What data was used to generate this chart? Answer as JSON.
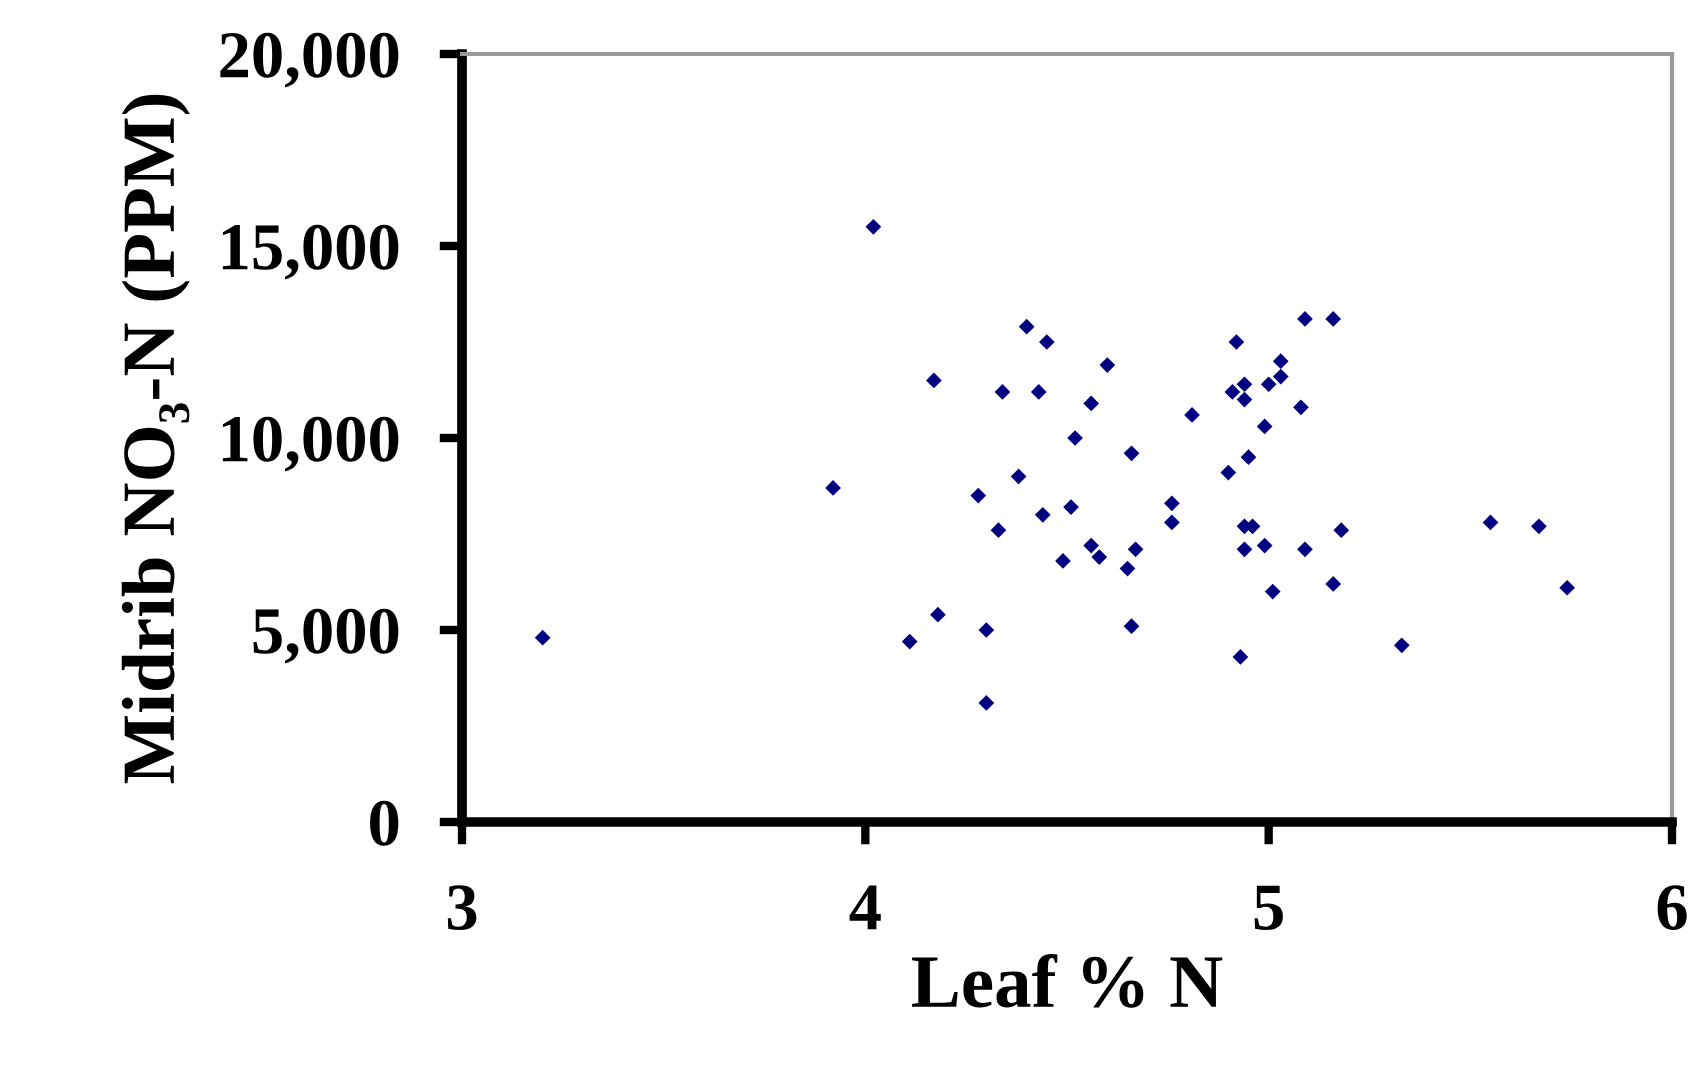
{
  "chart_data": {
    "type": "scatter",
    "xlabel": "Leaf % N",
    "ylabel": "Midrib NO₃-N (PPM)",
    "marker": "diamond",
    "grid": false,
    "legend": false,
    "xlim": [
      3,
      6
    ],
    "xticks": [
      3,
      4,
      5,
      6
    ],
    "ylim": [
      0,
      20000
    ],
    "yticks": [
      {
        "value": 0,
        "label": "0"
      },
      {
        "value": 5000,
        "label": "5,000"
      },
      {
        "value": 10000,
        "label": "10,000"
      },
      {
        "value": 15000,
        "label": "15,000"
      },
      {
        "value": 20000,
        "label": "20,000"
      }
    ],
    "series": [
      {
        "color": "#000080",
        "x": [
          4.02,
          4.4,
          4.45,
          4.6,
          4.17,
          4.34,
          4.43,
          4.56,
          4.81,
          4.52,
          4.66,
          4.38,
          3.92,
          4.28,
          4.51,
          4.44,
          4.76,
          4.76,
          4.33,
          4.56,
          4.67,
          4.58,
          4.49,
          4.65,
          4.18,
          4.11,
          4.3,
          4.66,
          4.3,
          5.09,
          5.16,
          4.92,
          5.03,
          5.03,
          4.94,
          5.0,
          4.91,
          4.94,
          5.08,
          4.99,
          4.95,
          4.9,
          4.94,
          4.96,
          5.18,
          5.55,
          5.67,
          4.94,
          4.99,
          5.09,
          5.01,
          5.16,
          5.74,
          5.33,
          4.93,
          3.2
        ],
        "values": [
          15500,
          12900,
          12500,
          11900,
          11500,
          11200,
          11200,
          10900,
          10600,
          10000,
          9600,
          9000,
          8700,
          8500,
          8200,
          8000,
          8300,
          7800,
          7600,
          7200,
          7100,
          6900,
          6800,
          6600,
          5400,
          4700,
          5000,
          5100,
          3100,
          13100,
          13100,
          12500,
          12000,
          11600,
          11400,
          11400,
          11200,
          11000,
          10800,
          10300,
          9500,
          9100,
          7700,
          7700,
          7600,
          7800,
          7700,
          7100,
          7200,
          7100,
          6000,
          6200,
          6100,
          4600,
          4300,
          4800
        ]
      }
    ]
  }
}
